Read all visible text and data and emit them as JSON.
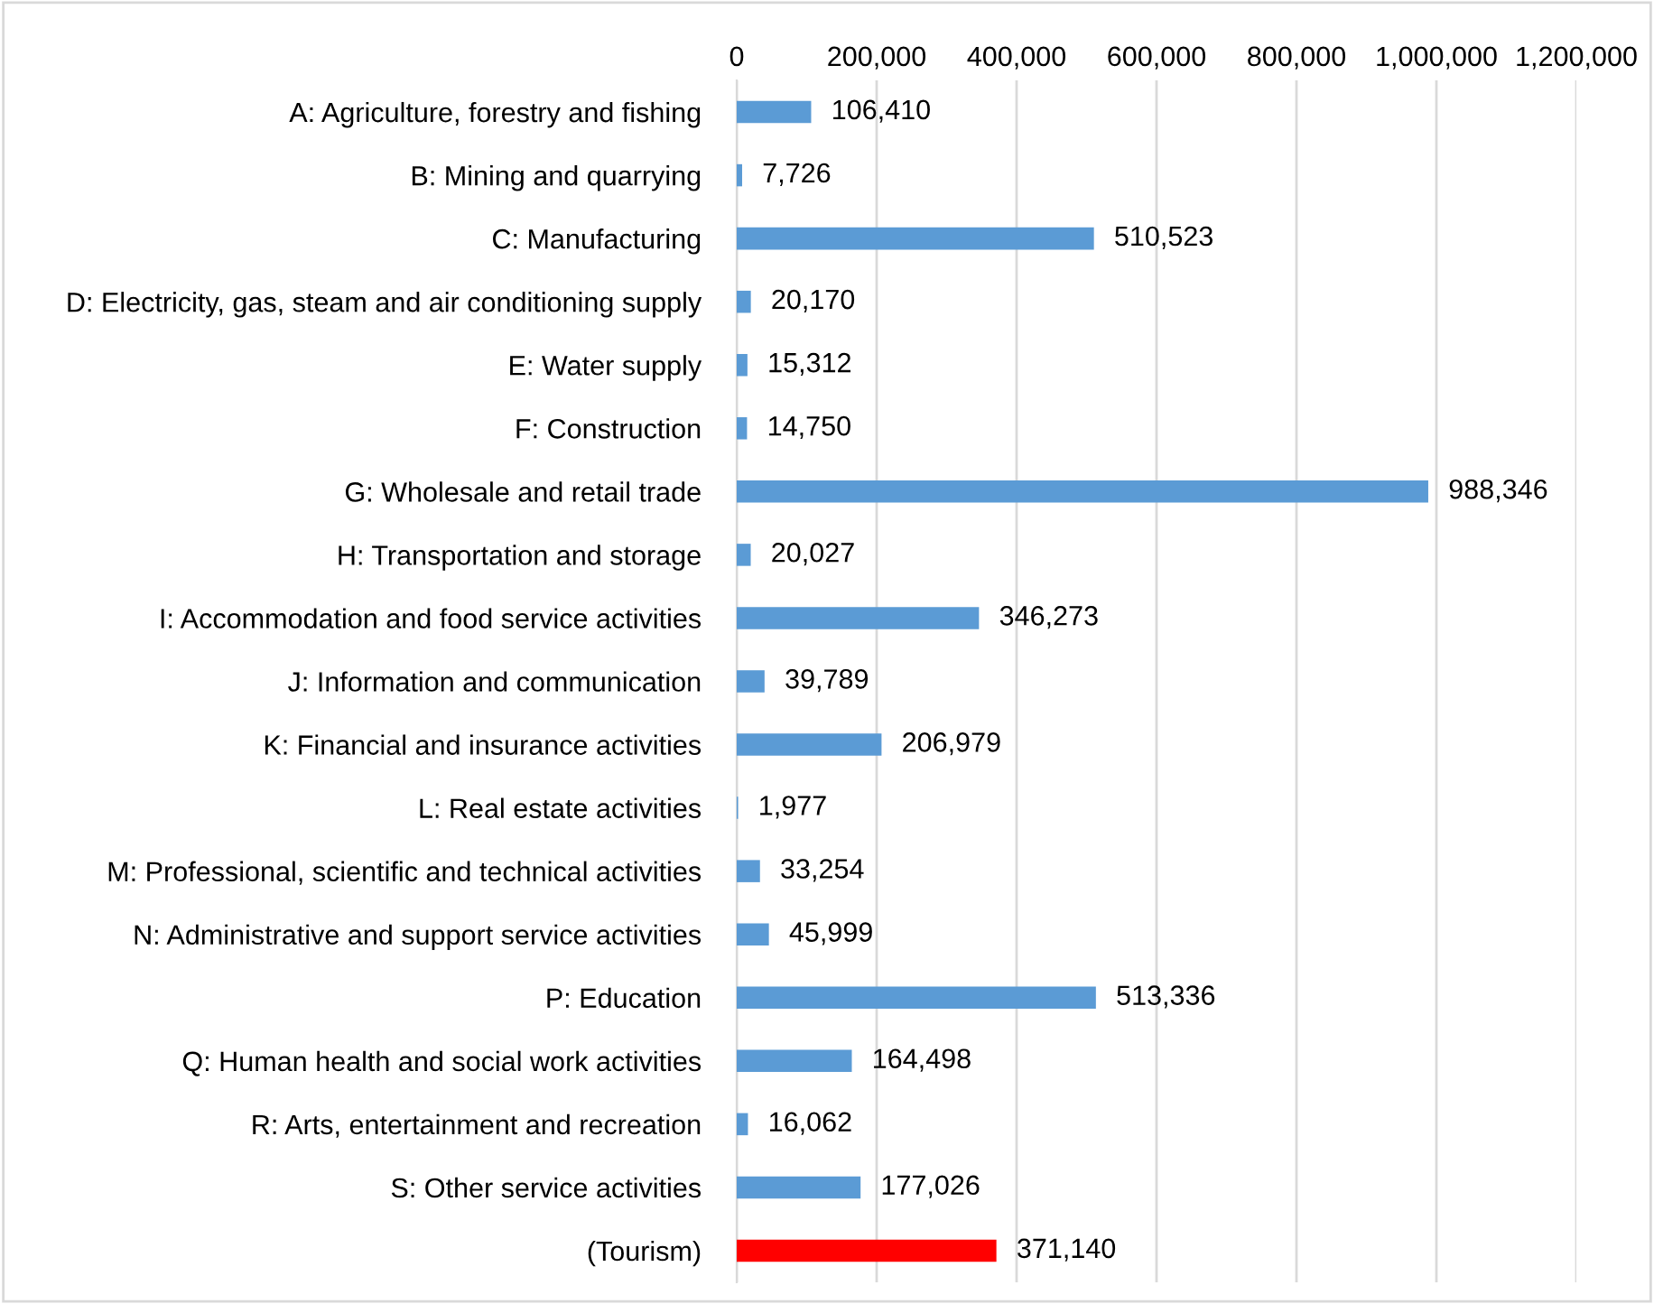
{
  "chart_data": {
    "type": "bar",
    "orientation": "horizontal",
    "categories": [
      "A: Agriculture, forestry and fishing",
      "B: Mining and quarrying",
      "C: Manufacturing",
      "D: Electricity, gas, steam and air conditioning supply",
      "E: Water supply",
      "F: Construction",
      "G: Wholesale and retail trade",
      "H: Transportation and storage",
      "I: Accommodation and food service activities",
      "J: Information and communication",
      "K: Financial and insurance activities",
      "L: Real estate activities",
      "M: Professional, scientific and technical activities",
      "N: Administrative and support service activities",
      "P: Education",
      "Q: Human health and social work activities",
      "R: Arts, entertainment and recreation",
      "S: Other service activities",
      "(Tourism)"
    ],
    "values": [
      106410,
      7726,
      510523,
      20170,
      15312,
      14750,
      988346,
      20027,
      346273,
      39789,
      206979,
      1977,
      33254,
      45999,
      513336,
      164498,
      16062,
      177026,
      371140
    ],
    "value_labels": [
      "106,410",
      "7,726",
      "510,523",
      "20,170",
      "15,312",
      "14,750",
      "988,346",
      "20,027",
      "346,273",
      "39,789",
      "206,979",
      "1,977",
      "33,254",
      "45,999",
      "513,336",
      "164,498",
      "16,062",
      "177,026",
      "371,140"
    ],
    "colors": [
      "#5b9bd5",
      "#5b9bd5",
      "#5b9bd5",
      "#5b9bd5",
      "#5b9bd5",
      "#5b9bd5",
      "#5b9bd5",
      "#5b9bd5",
      "#5b9bd5",
      "#5b9bd5",
      "#5b9bd5",
      "#5b9bd5",
      "#5b9bd5",
      "#5b9bd5",
      "#5b9bd5",
      "#5b9bd5",
      "#5b9bd5",
      "#5b9bd5",
      "#ff0000"
    ],
    "xlim": [
      0,
      1200000
    ],
    "xticks": [
      0,
      {
        "value": 200000,
        "label": "200,000"
      },
      {
        "value": 400000,
        "label": "400,000"
      },
      {
        "value": 600000,
        "label": "600,000"
      },
      {
        "value": 800000,
        "label": "800,000"
      },
      {
        "value": 1000000,
        "label": "1,000,000"
      },
      {
        "value": 1200000,
        "label": "1,200,000"
      }
    ],
    "grid": "x",
    "legend": false
  }
}
